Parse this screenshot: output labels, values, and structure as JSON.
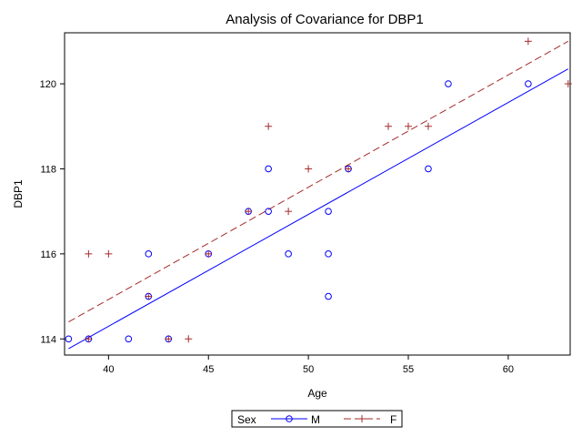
{
  "chart_data": {
    "type": "scatter",
    "title": "Analysis of Covariance for DBP1",
    "xlabel": "Age",
    "ylabel": "DBP1",
    "xlim": [
      37.8,
      63.1
    ],
    "ylim": [
      113.62,
      121.2
    ],
    "xticks": [
      40,
      45,
      50,
      55,
      60
    ],
    "yticks": [
      114,
      116,
      118,
      120
    ],
    "grid": false,
    "legend": {
      "placement": "bottom",
      "title": "Sex",
      "entries": [
        "M",
        "F"
      ]
    },
    "series": [
      {
        "name": "M",
        "marker": "circle",
        "line_style": "solid",
        "color": "#0000ff",
        "points": [
          [
            38,
            114
          ],
          [
            39,
            114
          ],
          [
            41,
            114
          ],
          [
            42,
            116
          ],
          [
            42,
            115
          ],
          [
            43,
            114
          ],
          [
            45,
            116
          ],
          [
            47,
            117
          ],
          [
            48,
            118
          ],
          [
            48,
            117
          ],
          [
            49,
            116
          ],
          [
            51,
            117
          ],
          [
            51,
            116
          ],
          [
            51,
            115
          ],
          [
            52,
            118
          ],
          [
            56,
            118
          ],
          [
            57,
            120
          ],
          [
            61,
            120
          ]
        ],
        "fit_line": [
          [
            38,
            113.77
          ],
          [
            63,
            120.35
          ]
        ]
      },
      {
        "name": "F",
        "marker": "plus",
        "line_style": "dashed",
        "color": "#a52a2a",
        "points": [
          [
            39,
            116
          ],
          [
            39,
            114
          ],
          [
            40,
            116
          ],
          [
            42,
            115
          ],
          [
            43,
            114
          ],
          [
            44,
            114
          ],
          [
            45,
            116
          ],
          [
            47,
            117
          ],
          [
            48,
            119
          ],
          [
            49,
            117
          ],
          [
            50,
            118
          ],
          [
            52,
            118
          ],
          [
            54,
            119
          ],
          [
            55,
            119
          ],
          [
            56,
            119
          ],
          [
            61,
            121
          ],
          [
            63,
            120
          ]
        ],
        "fit_line": [
          [
            38,
            114.4
          ],
          [
            63,
            121.0
          ]
        ]
      }
    ]
  }
}
